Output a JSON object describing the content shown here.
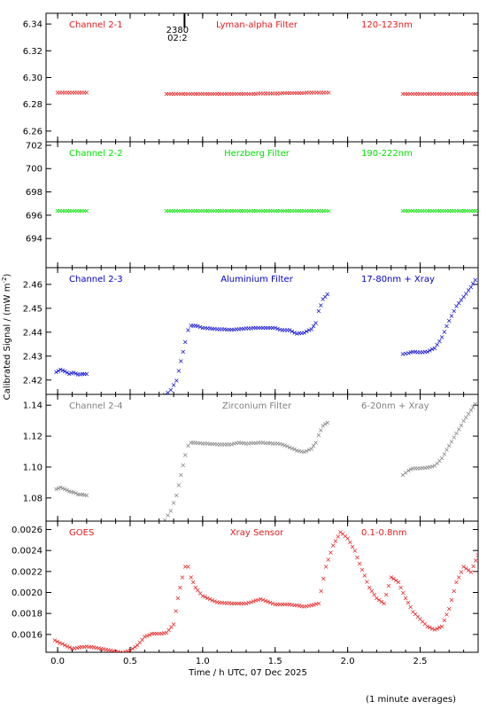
{
  "figure": {
    "xlabel": "Time / h UTC, 07 Dec 2025",
    "ylabel": "Calibrated Signal / (mW m",
    "ylabel_sup": "-2",
    "ylabel_close": ")",
    "footnote": "(1 minute averages)",
    "x_ticks": [
      "0.0",
      "0.5",
      "1.0",
      "1.5",
      "2.0",
      "2.5"
    ],
    "x_tick_values": [
      0.0,
      0.5,
      1.0,
      1.5,
      2.0,
      2.5
    ],
    "xlim": [
      -0.08,
      2.9
    ],
    "marker": {
      "label_top": "2380",
      "label_bottom": "02:2",
      "x": 0.875
    }
  },
  "chart_data": [
    {
      "type": "scatter",
      "labels": {
        "left": "Channel 2-1",
        "center": "Lyman-alpha Filter",
        "right": "120-123nm"
      },
      "color": "#e41a1c",
      "ylim": [
        6.252,
        6.348
      ],
      "y_ticks": [
        "6.26",
        "6.28",
        "6.30",
        "6.32",
        "6.34"
      ],
      "y_tick_values": [
        6.26,
        6.28,
        6.3,
        6.32,
        6.34
      ],
      "series": [
        {
          "x": [
            0.0,
            0.1,
            0.2
          ],
          "y": [
            6.289,
            6.289,
            6.289
          ]
        },
        {
          "x": [
            0.75,
            1.0,
            1.25,
            1.5,
            1.75,
            1.87
          ],
          "y": [
            6.288,
            6.288,
            6.288,
            6.2885,
            6.289,
            6.289
          ]
        },
        {
          "x": [
            2.38,
            2.6,
            2.9
          ],
          "y": [
            6.288,
            6.288,
            6.288
          ]
        }
      ]
    },
    {
      "type": "scatter",
      "labels": {
        "left": "Channel 2-2",
        "center": "Herzberg Filter",
        "right": "190-222nm"
      },
      "color": "#00e000",
      "ylim": [
        691.5,
        702.3
      ],
      "y_ticks": [
        "694",
        "696",
        "698",
        "700",
        "702"
      ],
      "y_tick_values": [
        694,
        696,
        698,
        700,
        702
      ],
      "series": [
        {
          "x": [
            0.0,
            0.1,
            0.2
          ],
          "y": [
            696.4,
            696.4,
            696.4
          ]
        },
        {
          "x": [
            0.75,
            1.0,
            1.25,
            1.5,
            1.75,
            1.87
          ],
          "y": [
            696.4,
            696.4,
            696.4,
            696.4,
            696.4,
            696.4
          ]
        },
        {
          "x": [
            2.38,
            2.6,
            2.9
          ],
          "y": [
            696.4,
            696.4,
            696.4
          ]
        }
      ]
    },
    {
      "type": "scatter",
      "labels": {
        "left": "Channel 2-3",
        "center": "Aluminium Filter",
        "right": "17-80nm + Xray"
      },
      "color": "#0000cc",
      "ylim": [
        2.414,
        2.467
      ],
      "y_ticks": [
        "2.42",
        "2.43",
        "2.44",
        "2.45",
        "2.46"
      ],
      "y_tick_values": [
        2.42,
        2.43,
        2.44,
        2.45,
        2.46
      ],
      "series": [
        {
          "x": [
            -0.01,
            0.02,
            0.05,
            0.08,
            0.11,
            0.14,
            0.17,
            0.2
          ],
          "y": [
            2.4235,
            2.4245,
            2.4238,
            2.4228,
            2.4232,
            2.4225,
            2.4227,
            2.4228
          ]
        },
        {
          "x": [
            0.74,
            0.78,
            0.82,
            0.85,
            0.88,
            0.9,
            0.92,
            0.95,
            1.0,
            1.1,
            1.2,
            1.25,
            1.3,
            1.4,
            1.5,
            1.55,
            1.6,
            1.65,
            1.7,
            1.75,
            1.78,
            1.8,
            1.83,
            1.86
          ],
          "y": [
            2.414,
            2.416,
            2.42,
            2.428,
            2.436,
            2.441,
            2.443,
            2.443,
            2.442,
            2.4415,
            2.4412,
            2.4415,
            2.4418,
            2.442,
            2.442,
            2.441,
            2.441,
            2.4395,
            2.44,
            2.4415,
            2.444,
            2.449,
            2.454,
            2.456
          ]
        },
        {
          "x": [
            2.38,
            2.42,
            2.45,
            2.5,
            2.55,
            2.6,
            2.65,
            2.7,
            2.75,
            2.8,
            2.85,
            2.88
          ],
          "y": [
            2.431,
            2.4315,
            2.432,
            2.4318,
            2.432,
            2.4335,
            2.438,
            2.445,
            2.451,
            2.455,
            2.459,
            2.462
          ]
        }
      ]
    },
    {
      "type": "scatter",
      "labels": {
        "left": "Channel 2-4",
        "center": "Zirconium Filter",
        "right": "6-20nm + Xray"
      },
      "color": "#7f7f7f",
      "ylim": [
        1.065,
        1.147
      ],
      "y_ticks": [
        "1.08",
        "1.10",
        "1.12",
        "1.14"
      ],
      "y_tick_values": [
        1.08,
        1.1,
        1.12,
        1.14
      ],
      "series": [
        {
          "x": [
            -0.01,
            0.02,
            0.05,
            0.08,
            0.11,
            0.14,
            0.17,
            0.2
          ],
          "y": [
            1.086,
            1.087,
            1.086,
            1.0845,
            1.084,
            1.0825,
            1.0825,
            1.082
          ]
        },
        {
          "x": [
            0.74,
            0.78,
            0.82,
            0.85,
            0.88,
            0.9,
            0.92,
            0.95,
            1.0,
            1.1,
            1.2,
            1.25,
            1.3,
            1.4,
            1.5,
            1.55,
            1.6,
            1.65,
            1.7,
            1.75,
            1.78,
            1.8,
            1.83,
            1.86
          ],
          "y": [
            1.066,
            1.072,
            1.082,
            1.095,
            1.108,
            1.114,
            1.116,
            1.116,
            1.1155,
            1.115,
            1.115,
            1.116,
            1.1155,
            1.116,
            1.1155,
            1.115,
            1.113,
            1.111,
            1.11,
            1.112,
            1.116,
            1.121,
            1.127,
            1.129
          ]
        },
        {
          "x": [
            2.38,
            2.42,
            2.45,
            2.5,
            2.55,
            2.6,
            2.65,
            2.7,
            2.75,
            2.8,
            2.85,
            2.88
          ],
          "y": [
            1.095,
            1.098,
            1.0995,
            1.0995,
            1.1,
            1.101,
            1.106,
            1.114,
            1.122,
            1.13,
            1.137,
            1.141
          ]
        }
      ]
    },
    {
      "type": "scatter",
      "labels": {
        "left": "GOES",
        "center": "Xray Sensor",
        "right": "0.1-0.8nm"
      },
      "color": "#e41a1c",
      "ylim": [
        0.00143,
        0.00268
      ],
      "y_ticks": [
        "0.0016",
        "0.0018",
        "0.0020",
        "0.0022",
        "0.0024",
        "0.0026"
      ],
      "y_tick_values": [
        0.0016,
        0.0018,
        0.002,
        0.0022,
        0.0024,
        0.0026
      ],
      "series": [
        {
          "x": [
            -0.02,
            0.05,
            0.1,
            0.2,
            0.3,
            0.4,
            0.45,
            0.5,
            0.55,
            0.6,
            0.65,
            0.7,
            0.75,
            0.8,
            0.83,
            0.86,
            0.88,
            0.9,
            0.92,
            0.95,
            1.0,
            1.1,
            1.2,
            1.3,
            1.35,
            1.4,
            1.5,
            1.6,
            1.7,
            1.75,
            1.8,
            1.85,
            1.9,
            1.95,
            2.0,
            2.05,
            2.1,
            2.15,
            2.2,
            2.25,
            2.3,
            2.35,
            2.4,
            2.45,
            2.5,
            2.55,
            2.6,
            2.65,
            2.7,
            2.75,
            2.8,
            2.85,
            2.9
          ],
          "y": [
            0.00155,
            0.0015,
            0.00147,
            0.00149,
            0.00147,
            0.00144,
            0.00143,
            0.00145,
            0.0015,
            0.00158,
            0.00161,
            0.00161,
            0.00162,
            0.0017,
            0.00195,
            0.00215,
            0.00225,
            0.00225,
            0.00215,
            0.00205,
            0.00197,
            0.00191,
            0.0019,
            0.0019,
            0.00192,
            0.00194,
            0.00189,
            0.00189,
            0.00187,
            0.00188,
            0.0019,
            0.00225,
            0.00245,
            0.00258,
            0.00252,
            0.0024,
            0.00222,
            0.00205,
            0.00195,
            0.0019,
            0.00215,
            0.0021,
            0.00195,
            0.00182,
            0.00175,
            0.00168,
            0.00165,
            0.00168,
            0.00185,
            0.0021,
            0.00225,
            0.0022,
            0.00236
          ]
        }
      ]
    }
  ]
}
